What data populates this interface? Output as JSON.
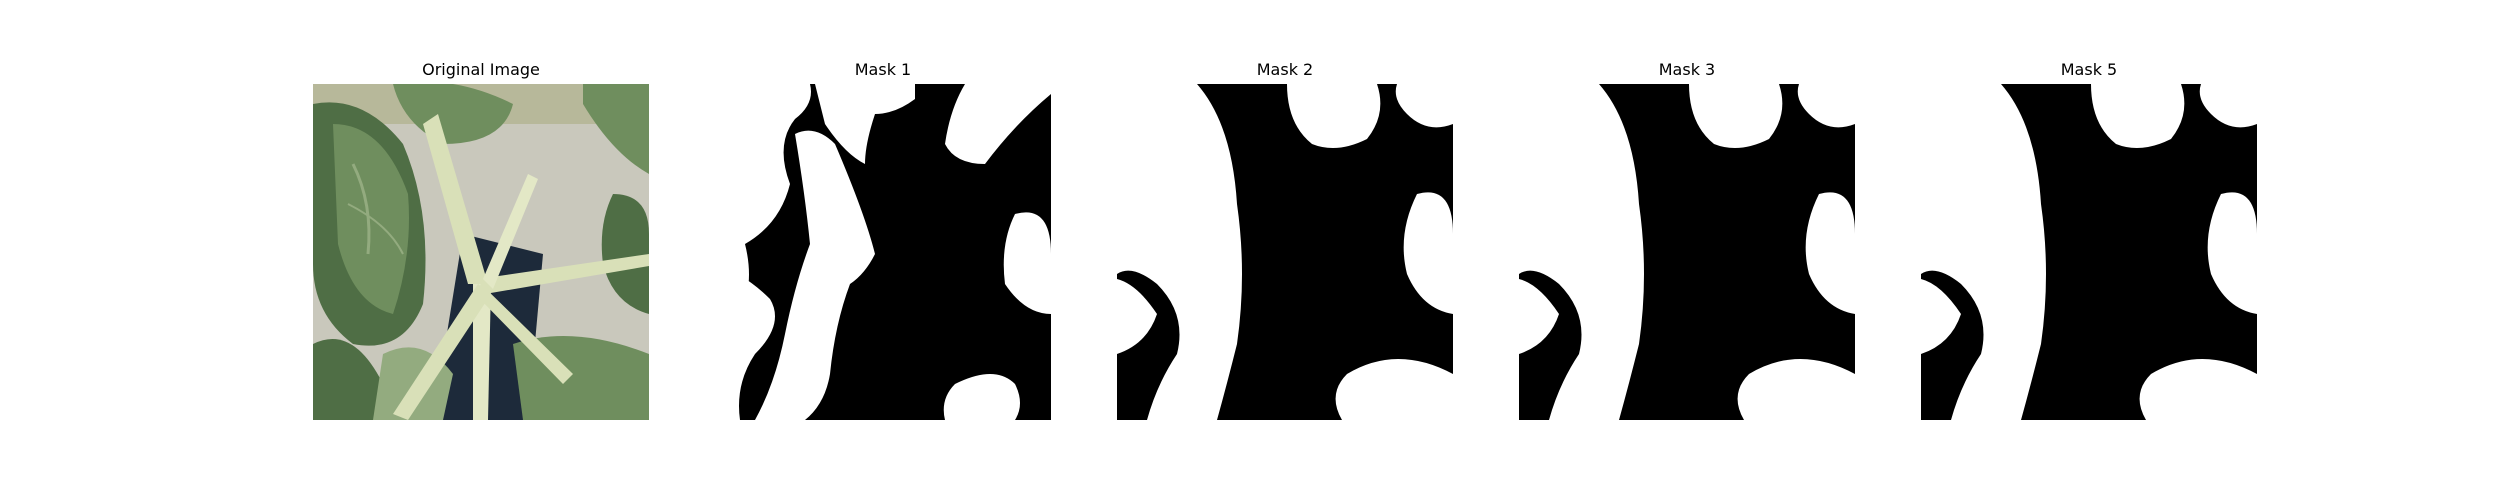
{
  "figure": {
    "panels": [
      {
        "title": "Original Image",
        "kind": "photo"
      },
      {
        "title": "Mask 1",
        "kind": "mask"
      },
      {
        "title": "Mask 2",
        "kind": "mask"
      },
      {
        "title": "Mask 3",
        "kind": "mask"
      },
      {
        "title": "Mask 5",
        "kind": "mask"
      }
    ]
  },
  "colors": {
    "background": "#ffffff",
    "mask_foreground": "#ffffff",
    "mask_background": "#000000",
    "leaf_dark": "#4f6e45",
    "leaf_mid": "#6f8e5e",
    "leaf_light": "#93ab7f",
    "stem": "#d9e0b8",
    "pot": "#1d2a3a",
    "wall": "#c9c8bc"
  }
}
